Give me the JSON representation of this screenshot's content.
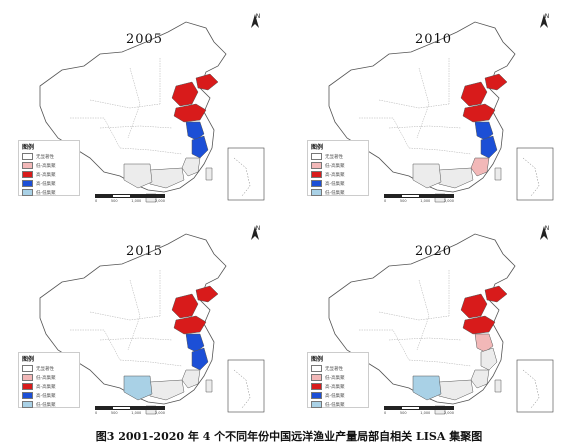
{
  "caption": "图3   2001-2020 年 4 个不同年份中国远洋渔业产量局部自相关 LISA 集聚图",
  "north_letter": "N",
  "scale_labels": [
    "0",
    "500",
    "1,000",
    "2,000"
  ],
  "legend_title": "图例",
  "colors": {
    "not_significant": "#ffffff",
    "low_high": "#f2b8b8",
    "high_high": "#d81b1b",
    "high_low": "#1c4fd6",
    "low_low": "#a9d1e6",
    "background_gray": "#ececec",
    "outline": "#555555"
  },
  "legend_items": [
    {
      "label": "无显著性",
      "color_key": "not_significant"
    },
    {
      "label": "低-高集聚",
      "color_key": "low_high"
    },
    {
      "label": "高-高集聚",
      "color_key": "high_high"
    },
    {
      "label": "高-低集聚",
      "color_key": "high_low"
    },
    {
      "label": "低-低集聚",
      "color_key": "low_low"
    }
  ],
  "panels": [
    {
      "year": "2005",
      "regions": {
        "tianjin_hebei": "high_high",
        "shandong": "high_high",
        "jiangsu": "high_low",
        "shanghai_zhejiang": "high_low",
        "fujian": "background_gray",
        "guangdong": "background_gray",
        "guangxi": "background_gray",
        "taiwan": "background_gray",
        "liaoning": "high_high",
        "hainan": "background_gray"
      }
    },
    {
      "year": "2010",
      "regions": {
        "tianjin_hebei": "high_high",
        "shandong": "high_high",
        "jiangsu": "high_low",
        "shanghai_zhejiang": "high_low",
        "fujian": "low_high",
        "guangdong": "background_gray",
        "guangxi": "background_gray",
        "taiwan": "background_gray",
        "liaoning": "high_high",
        "hainan": "background_gray"
      }
    },
    {
      "year": "2015",
      "regions": {
        "tianjin_hebei": "high_high",
        "shandong": "high_high",
        "jiangsu": "high_low",
        "shanghai_zhejiang": "high_low",
        "fujian": "background_gray",
        "guangdong": "background_gray",
        "guangxi": "low_low",
        "taiwan": "background_gray",
        "liaoning": "high_high",
        "hainan": "background_gray"
      }
    },
    {
      "year": "2020",
      "regions": {
        "tianjin_hebei": "high_high",
        "shandong": "high_high",
        "jiangsu": "low_high",
        "shanghai_zhejiang": "background_gray",
        "fujian": "background_gray",
        "guangdong": "background_gray",
        "guangxi": "low_low",
        "taiwan": "background_gray",
        "liaoning": "high_high",
        "hainan": "background_gray"
      }
    }
  ]
}
